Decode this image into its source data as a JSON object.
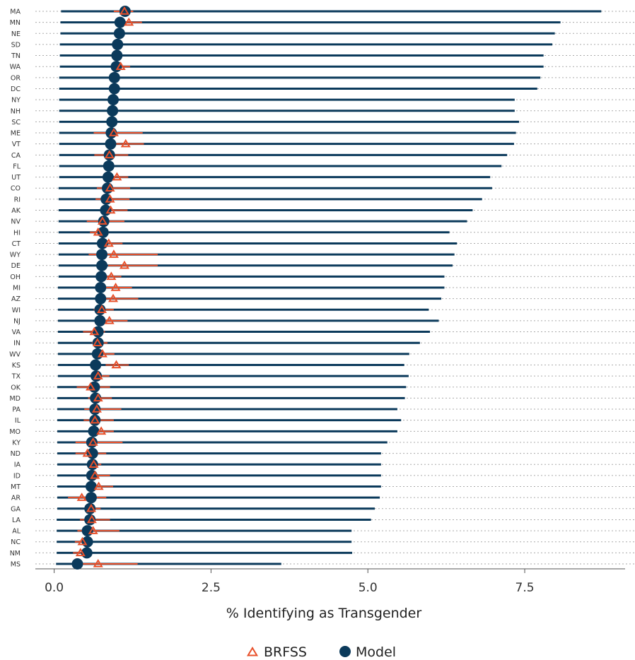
{
  "chart_data": {
    "type": "interval-dot",
    "xlabel": "% Identifying as Transgender",
    "xticks": [
      0.0,
      2.5,
      5.0,
      7.5
    ],
    "xtick_labels": [
      "0.0",
      "2.5",
      "5.0",
      "7.5"
    ],
    "xlim": [
      -0.3,
      9.1
    ],
    "colors": {
      "model": "#0b3a5b",
      "brfss": "#e8502a",
      "grid": "#aaaaaa"
    },
    "legend": {
      "position": "bottom",
      "items": [
        "BRFSS",
        "Model"
      ]
    },
    "series": [
      {
        "name": "Model",
        "marker": "circle",
        "states": [
          "MA",
          "MN",
          "NE",
          "SD",
          "TN",
          "WA",
          "OR",
          "DC",
          "NY",
          "NH",
          "SC",
          "ME",
          "VT",
          "CA",
          "FL",
          "UT",
          "CO",
          "RI",
          "AK",
          "NV",
          "HI",
          "CT",
          "WY",
          "DE",
          "OH",
          "MI",
          "AZ",
          "WI",
          "NJ",
          "VA",
          "IN",
          "WV",
          "KS",
          "TX",
          "OK",
          "MD",
          "PA",
          "IL",
          "MO",
          "KY",
          "ND",
          "IA",
          "ID",
          "MT",
          "AR",
          "GA",
          "LA",
          "AL",
          "NC",
          "NM",
          "MS"
        ],
        "values": [
          1.13,
          1.05,
          1.04,
          1.01,
          1.0,
          0.99,
          0.96,
          0.96,
          0.94,
          0.93,
          0.92,
          0.91,
          0.9,
          0.88,
          0.87,
          0.86,
          0.85,
          0.83,
          0.82,
          0.79,
          0.78,
          0.77,
          0.76,
          0.76,
          0.75,
          0.74,
          0.74,
          0.73,
          0.73,
          0.7,
          0.7,
          0.69,
          0.66,
          0.67,
          0.64,
          0.66,
          0.65,
          0.65,
          0.63,
          0.6,
          0.61,
          0.61,
          0.6,
          0.59,
          0.59,
          0.57,
          0.57,
          0.53,
          0.53,
          0.52,
          0.37
        ],
        "lower": [
          0.11,
          0.1,
          0.1,
          0.09,
          0.09,
          0.09,
          0.08,
          0.08,
          0.08,
          0.08,
          0.08,
          0.08,
          0.08,
          0.08,
          0.08,
          0.08,
          0.07,
          0.07,
          0.07,
          0.07,
          0.07,
          0.07,
          0.07,
          0.07,
          0.07,
          0.06,
          0.06,
          0.06,
          0.06,
          0.06,
          0.06,
          0.06,
          0.06,
          0.06,
          0.05,
          0.05,
          0.05,
          0.05,
          0.05,
          0.05,
          0.05,
          0.05,
          0.05,
          0.05,
          0.05,
          0.05,
          0.04,
          0.04,
          0.04,
          0.04,
          0.03
        ],
        "upper": [
          8.72,
          8.07,
          7.98,
          7.94,
          7.8,
          7.8,
          7.75,
          7.7,
          7.34,
          7.34,
          7.41,
          7.36,
          7.33,
          7.22,
          7.13,
          6.95,
          6.98,
          6.82,
          6.67,
          6.58,
          6.3,
          6.42,
          6.38,
          6.35,
          6.22,
          6.22,
          6.17,
          5.97,
          6.13,
          5.99,
          5.83,
          5.66,
          5.58,
          5.65,
          5.61,
          5.59,
          5.47,
          5.53,
          5.47,
          5.31,
          5.21,
          5.21,
          5.21,
          5.21,
          5.19,
          5.11,
          5.05,
          4.74,
          4.74,
          4.75,
          3.62
        ]
      },
      {
        "name": "BRFSS",
        "marker": "triangle",
        "states": [
          "MA",
          "MN",
          "WA",
          "ME",
          "VT",
          "CA",
          "UT",
          "CO",
          "RI",
          "AK",
          "NV",
          "HI",
          "CT",
          "WY",
          "DE",
          "OH",
          "MI",
          "AZ",
          "WI",
          "NJ",
          "VA",
          "IN",
          "WV",
          "KS",
          "TX",
          "OK",
          "MD",
          "PA",
          "IL",
          "MO",
          "KY",
          "ND",
          "IA",
          "ID",
          "MT",
          "AR",
          "GA",
          "LA",
          "AL",
          "NC",
          "NM",
          "MS"
        ],
        "values": [
          1.12,
          1.19,
          1.06,
          0.95,
          1.14,
          0.88,
          1.0,
          0.89,
          0.89,
          0.9,
          0.77,
          0.7,
          0.87,
          0.95,
          1.12,
          0.91,
          0.98,
          0.94,
          0.76,
          0.88,
          0.64,
          0.69,
          0.77,
          0.99,
          0.7,
          0.58,
          0.7,
          0.68,
          0.65,
          0.75,
          0.62,
          0.53,
          0.63,
          0.65,
          0.71,
          0.44,
          0.59,
          0.6,
          0.62,
          0.45,
          0.42,
          0.7
        ],
        "lower": [
          0.95,
          0.99,
          0.94,
          0.63,
          0.92,
          0.64,
          0.8,
          0.68,
          0.66,
          0.73,
          0.52,
          0.57,
          0.77,
          0.55,
          0.86,
          0.8,
          0.8,
          0.68,
          0.63,
          0.73,
          0.46,
          0.6,
          0.64,
          0.82,
          0.59,
          0.36,
          0.54,
          0.48,
          0.47,
          0.62,
          0.34,
          0.34,
          0.54,
          0.51,
          0.55,
          0.22,
          0.49,
          0.41,
          0.37,
          0.33,
          0.3,
          0.42
        ],
        "upper": [
          1.26,
          1.4,
          1.21,
          1.41,
          1.43,
          1.18,
          1.18,
          1.21,
          1.2,
          1.17,
          1.12,
          0.87,
          1.09,
          1.65,
          1.65,
          1.07,
          1.24,
          1.34,
          0.95,
          1.17,
          0.81,
          0.85,
          0.96,
          1.19,
          0.88,
          0.89,
          0.92,
          1.07,
          0.95,
          0.95,
          1.09,
          0.83,
          0.75,
          0.89,
          0.94,
          0.83,
          0.74,
          0.89,
          1.04,
          0.6,
          0.58,
          1.33
        ]
      }
    ]
  }
}
